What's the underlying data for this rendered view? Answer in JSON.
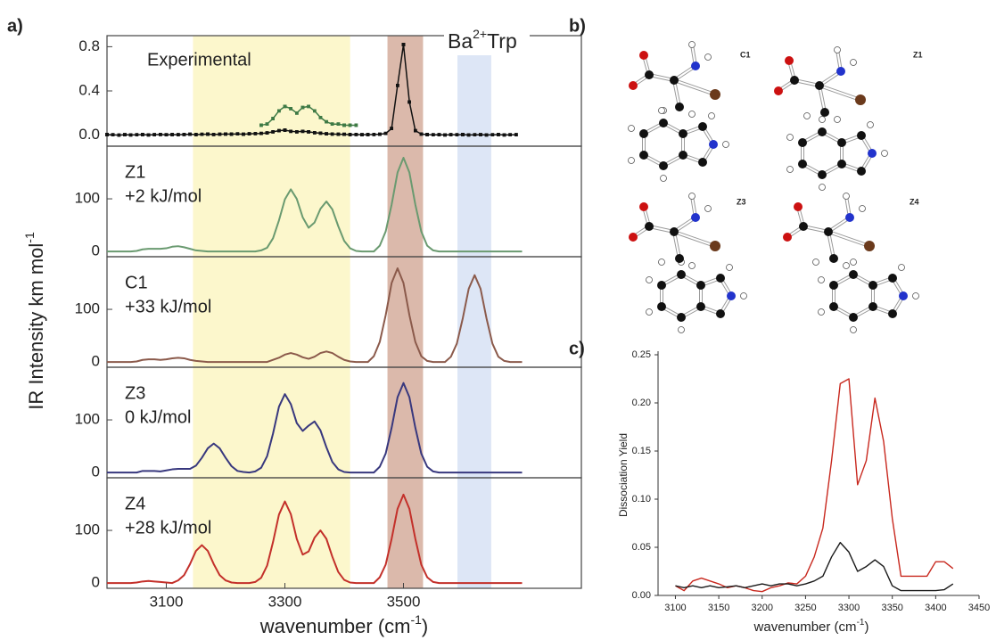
{
  "panel_labels": {
    "a": "a)",
    "b": "b)",
    "c": "c)"
  },
  "panel_a": {
    "y_label": "IR Intensity km mol",
    "y_label_sup": "-1",
    "x_label": "wavenumber (cm",
    "x_label_sup": "-1",
    "x_label_end": ")",
    "ion": "Ba",
    "ion_sup": "2+",
    "ion_end": "Trp",
    "bands": [
      {
        "from": 3145,
        "to": 3410,
        "color": "#fcf7cc"
      },
      {
        "from": 3473,
        "to": 3533,
        "color": "#dbb9ab"
      },
      {
        "from": 3591,
        "to": 3648,
        "color": "#dde6f6"
      }
    ]
  },
  "molecules": {
    "labels": [
      "C1",
      "Z1",
      "Z3",
      "Z4"
    ]
  },
  "chart_data": [
    {
      "type": "line",
      "annotation": [
        "Experimental"
      ],
      "x": [
        3000,
        3010,
        3020,
        3030,
        3040,
        3050,
        3060,
        3070,
        3080,
        3090,
        3100,
        3110,
        3120,
        3130,
        3140,
        3150,
        3160,
        3170,
        3180,
        3190,
        3200,
        3210,
        3220,
        3230,
        3240,
        3250,
        3260,
        3270,
        3280,
        3290,
        3300,
        3310,
        3320,
        3330,
        3340,
        3350,
        3360,
        3370,
        3380,
        3390,
        3400,
        3410,
        3420,
        3430,
        3440,
        3450,
        3460,
        3470,
        3480,
        3490,
        3500,
        3510,
        3520,
        3530,
        3540,
        3550,
        3560,
        3570,
        3580,
        3590,
        3600,
        3610,
        3620,
        3630,
        3640,
        3650,
        3660,
        3670,
        3680,
        3690
      ],
      "series": [
        {
          "color": "#111111",
          "values": [
            0.005,
            0.003,
            0,
            0.004,
            0.002,
            0.003,
            0.005,
            0.002,
            0.004,
            0.006,
            0.003,
            0.005,
            0.004,
            0.006,
            0.008,
            0.005,
            0.007,
            0.009,
            0.006,
            0.008,
            0.01,
            0.009,
            0.011,
            0.008,
            0.012,
            0.014,
            0.015,
            0.02,
            0.03,
            0.04,
            0.045,
            0.035,
            0.03,
            0.035,
            0.03,
            0.022,
            0.018,
            0.012,
            0.01,
            0.008,
            0.007,
            0.005,
            0.006,
            0.004,
            0.005,
            0.006,
            0.008,
            0.015,
            0.06,
            0.45,
            0.82,
            0.3,
            0.04,
            0.01,
            0.005,
            0.003,
            0.004,
            0.002,
            0.004,
            0.003,
            0.005,
            0.002,
            0.003,
            0.004,
            0.002,
            0.003,
            0.005,
            0.002,
            0.003,
            0.004
          ]
        },
        {
          "color": "#3e7a45",
          "values": [
            null,
            null,
            null,
            null,
            null,
            null,
            null,
            null,
            null,
            null,
            null,
            null,
            null,
            null,
            null,
            null,
            null,
            null,
            null,
            null,
            null,
            null,
            null,
            null,
            null,
            null,
            0.09,
            0.1,
            0.15,
            0.22,
            0.26,
            0.24,
            0.2,
            0.25,
            0.26,
            0.22,
            0.16,
            0.12,
            0.1,
            0.1,
            0.09,
            0.09,
            0.09,
            null,
            null,
            null,
            null,
            null,
            null,
            null,
            null,
            null,
            null,
            null,
            null,
            null,
            null,
            null,
            null,
            null,
            null,
            null,
            null,
            null,
            null,
            null,
            null,
            null,
            null,
            null
          ]
        }
      ],
      "xlim": [
        3000,
        3800
      ],
      "ylim": [
        -0.1,
        0.9
      ],
      "yticks": [
        {
          "value": 0,
          "label": "0.0"
        },
        0.4,
        0.8
      ]
    },
    {
      "type": "line",
      "annotation": [
        "Z1",
        "+2 kJ/mol"
      ],
      "x": [
        3000,
        3010,
        3020,
        3030,
        3040,
        3050,
        3060,
        3070,
        3080,
        3090,
        3100,
        3110,
        3120,
        3130,
        3140,
        3150,
        3160,
        3170,
        3180,
        3190,
        3200,
        3210,
        3220,
        3230,
        3240,
        3250,
        3260,
        3270,
        3280,
        3290,
        3300,
        3310,
        3320,
        3330,
        3340,
        3350,
        3360,
        3370,
        3380,
        3390,
        3400,
        3410,
        3420,
        3430,
        3440,
        3450,
        3460,
        3470,
        3480,
        3490,
        3500,
        3510,
        3520,
        3530,
        3540,
        3550,
        3560,
        3570,
        3580,
        3590,
        3600,
        3610,
        3620,
        3630,
        3640,
        3650,
        3660,
        3670,
        3680,
        3690,
        3700
      ],
      "series": [
        {
          "color": "#6a9a70",
          "values": [
            0,
            0,
            0,
            0,
            0,
            1,
            4,
            5,
            5,
            5,
            6,
            9,
            10,
            8,
            5,
            2,
            1,
            0,
            0,
            0,
            0,
            0,
            0,
            0,
            0,
            0,
            2,
            7,
            25,
            59,
            99,
            118,
            100,
            65,
            45,
            55,
            81,
            95,
            80,
            48,
            20,
            6,
            1,
            0,
            0,
            0,
            11,
            38,
            89,
            150,
            178,
            150,
            89,
            38,
            11,
            2,
            0,
            0,
            0,
            0,
            0,
            0,
            0,
            0,
            0,
            0,
            0,
            0,
            0,
            0,
            0
          ]
        }
      ],
      "xlim": [
        3000,
        3800
      ],
      "ylim": [
        -10,
        200
      ],
      "yticks": [
        0,
        100
      ]
    },
    {
      "type": "line",
      "annotation": [
        "C1",
        "+33 kJ/mol"
      ],
      "x": [
        3000,
        3010,
        3020,
        3030,
        3040,
        3050,
        3060,
        3070,
        3080,
        3090,
        3100,
        3110,
        3120,
        3130,
        3140,
        3150,
        3160,
        3170,
        3180,
        3190,
        3200,
        3210,
        3220,
        3230,
        3240,
        3250,
        3260,
        3270,
        3280,
        3290,
        3300,
        3310,
        3320,
        3330,
        3340,
        3350,
        3360,
        3370,
        3380,
        3390,
        3400,
        3410,
        3420,
        3430,
        3440,
        3450,
        3460,
        3470,
        3480,
        3490,
        3500,
        3510,
        3520,
        3530,
        3540,
        3550,
        3560,
        3570,
        3580,
        3590,
        3600,
        3610,
        3620,
        3630,
        3640,
        3650,
        3660,
        3670,
        3680,
        3690,
        3700
      ],
      "series": [
        {
          "color": "#8b5a4b",
          "values": [
            0,
            0,
            0,
            0,
            0,
            1,
            4,
            5,
            5,
            4,
            5,
            7,
            8,
            7,
            4,
            2,
            1,
            0,
            0,
            0,
            0,
            0,
            0,
            0,
            0,
            0,
            0,
            0,
            4,
            8,
            14,
            17,
            14,
            9,
            6,
            10,
            17,
            20,
            17,
            10,
            4,
            1,
            0,
            0,
            0,
            11,
            38,
            89,
            150,
            178,
            150,
            89,
            38,
            11,
            2,
            0,
            0,
            0,
            10,
            35,
            83,
            139,
            165,
            139,
            83,
            35,
            10,
            2,
            0,
            0,
            0
          ]
        }
      ],
      "xlim": [
        3000,
        3800
      ],
      "ylim": [
        -10,
        200
      ],
      "yticks": [
        0,
        100
      ]
    },
    {
      "type": "line",
      "annotation": [
        "Z3",
        "0 kJ/mol"
      ],
      "x": [
        3000,
        3010,
        3020,
        3030,
        3040,
        3050,
        3060,
        3070,
        3080,
        3090,
        3100,
        3110,
        3120,
        3130,
        3140,
        3150,
        3160,
        3170,
        3180,
        3190,
        3200,
        3210,
        3220,
        3230,
        3240,
        3250,
        3260,
        3270,
        3280,
        3290,
        3300,
        3310,
        3320,
        3330,
        3340,
        3350,
        3360,
        3370,
        3380,
        3390,
        3400,
        3410,
        3420,
        3430,
        3440,
        3450,
        3460,
        3470,
        3480,
        3490,
        3500,
        3510,
        3520,
        3530,
        3540,
        3550,
        3560,
        3570,
        3580,
        3590,
        3600,
        3610,
        3620,
        3630,
        3640,
        3650,
        3660,
        3670,
        3680,
        3690,
        3700
      ],
      "series": [
        {
          "color": "#38387e",
          "values": [
            0,
            0,
            0,
            0,
            0,
            0,
            3,
            3,
            3,
            2,
            4,
            6,
            7,
            7,
            7,
            13,
            28,
            46,
            55,
            46,
            28,
            12,
            3,
            1,
            0,
            2,
            9,
            31,
            74,
            125,
            149,
            130,
            94,
            79,
            89,
            97,
            80,
            48,
            20,
            6,
            1,
            0,
            0,
            0,
            0,
            0,
            11,
            36,
            85,
            143,
            170,
            143,
            85,
            36,
            11,
            2,
            0,
            0,
            0,
            0,
            0,
            0,
            0,
            0,
            0,
            0,
            0,
            0,
            0,
            0,
            0
          ]
        }
      ],
      "xlim": [
        3000,
        3800
      ],
      "ylim": [
        -10,
        200
      ],
      "yticks": [
        0,
        100
      ]
    },
    {
      "type": "line",
      "annotation": [
        "Z4",
        "+28 kJ/mol"
      ],
      "x": [
        3000,
        3010,
        3020,
        3030,
        3040,
        3050,
        3060,
        3070,
        3080,
        3090,
        3100,
        3110,
        3120,
        3130,
        3140,
        3150,
        3160,
        3170,
        3180,
        3190,
        3200,
        3210,
        3220,
        3230,
        3240,
        3250,
        3260,
        3270,
        3280,
        3290,
        3300,
        3310,
        3320,
        3330,
        3340,
        3350,
        3360,
        3370,
        3380,
        3390,
        3400,
        3410,
        3420,
        3430,
        3440,
        3450,
        3460,
        3470,
        3480,
        3490,
        3500,
        3510,
        3520,
        3530,
        3540,
        3550,
        3560,
        3570,
        3580,
        3590,
        3600,
        3610,
        3620,
        3630,
        3640,
        3650,
        3660,
        3670,
        3680,
        3690,
        3700
      ],
      "series": [
        {
          "color": "#c3302a",
          "values": [
            0,
            0,
            0,
            0,
            0,
            1,
            3,
            4,
            3,
            2,
            1,
            0,
            5,
            15,
            36,
            61,
            72,
            61,
            36,
            15,
            5,
            1,
            0,
            0,
            0,
            2,
            10,
            33,
            78,
            130,
            155,
            131,
            84,
            54,
            60,
            86,
            100,
            84,
            50,
            21,
            6,
            1,
            0,
            0,
            0,
            0,
            11,
            35,
            84,
            141,
            168,
            141,
            84,
            35,
            11,
            2,
            0,
            0,
            0,
            0,
            0,
            0,
            0,
            0,
            0,
            0,
            0,
            0,
            0,
            0,
            0
          ]
        }
      ],
      "xlim": [
        3000,
        3800
      ],
      "ylim": [
        -10,
        200
      ],
      "yticks": [
        0,
        100
      ],
      "xticks": [
        3100,
        3300,
        3500
      ]
    },
    {
      "type": "line",
      "y_label": "Dissociation Yield",
      "x_label": "wavenumber (cm",
      "x_label_sup": "-1",
      "x_label_end": ")",
      "x": [
        3100,
        3110,
        3120,
        3130,
        3140,
        3150,
        3160,
        3170,
        3180,
        3190,
        3200,
        3210,
        3220,
        3230,
        3240,
        3250,
        3260,
        3270,
        3280,
        3290,
        3300,
        3310,
        3320,
        3330,
        3340,
        3350,
        3360,
        3370,
        3380,
        3390,
        3400,
        3410,
        3420
      ],
      "series": [
        {
          "color": "#c8281e",
          "values": [
            0.01,
            0.005,
            0.015,
            0.018,
            0.015,
            0.012,
            0.008,
            0.01,
            0.008,
            0.005,
            0.004,
            0.008,
            0.01,
            0.013,
            0.012,
            0.02,
            0.04,
            0.07,
            0.14,
            0.22,
            0.225,
            0.115,
            0.14,
            0.205,
            0.16,
            0.08,
            0.02,
            0.02,
            0.02,
            0.02,
            0.035,
            0.035,
            0.028
          ]
        },
        {
          "color": "#1a1a1a",
          "values": [
            0.01,
            0.008,
            0.01,
            0.008,
            0.01,
            0.008,
            0.009,
            0.01,
            0.008,
            0.01,
            0.012,
            0.01,
            0.012,
            0.012,
            0.01,
            0.012,
            0.015,
            0.02,
            0.04,
            0.055,
            0.045,
            0.025,
            0.03,
            0.037,
            0.03,
            0.01,
            0.005,
            0.005,
            0.005,
            0.005,
            0.005,
            0.006,
            0.012
          ]
        }
      ],
      "xlim": [
        3080,
        3450
      ],
      "ylim": [
        0,
        0.25
      ],
      "xticks": [
        3100,
        3150,
        3200,
        3250,
        3300,
        3350,
        3400,
        3450
      ],
      "yticks": [
        {
          "value": 0,
          "label": "0.00"
        },
        {
          "value": 0.05,
          "label": "0.05"
        },
        {
          "value": 0.1,
          "label": "0.10"
        },
        {
          "value": 0.15,
          "label": "0.15"
        },
        {
          "value": 0.2,
          "label": "0.20"
        },
        {
          "value": 0.25,
          "label": "0.25"
        }
      ]
    }
  ]
}
